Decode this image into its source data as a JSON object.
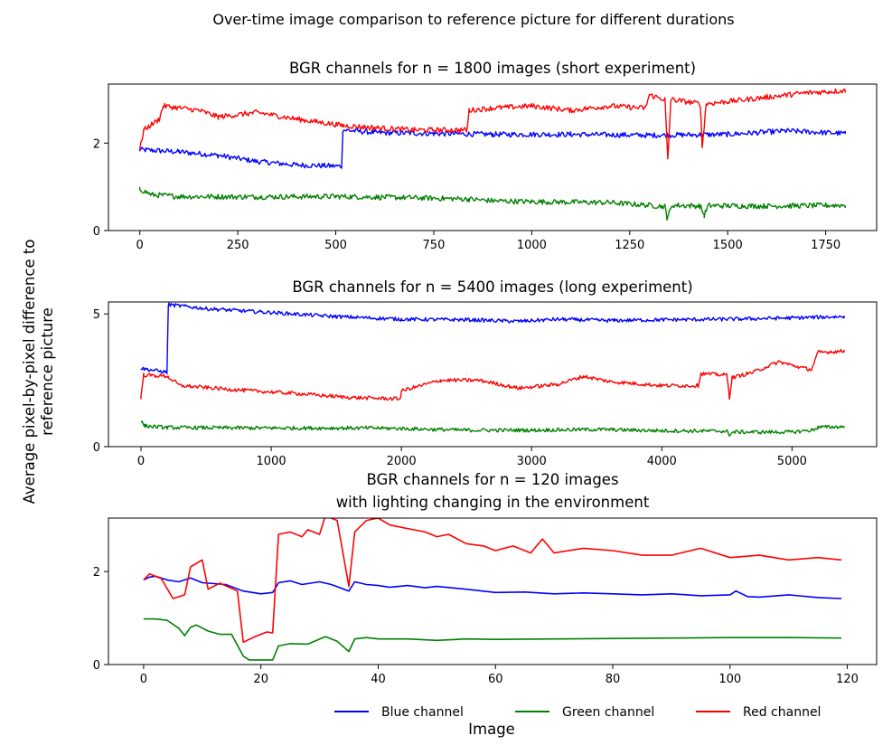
{
  "suptitle": "Over-time image comparison to reference picture for different durations",
  "ylabel": "Average pixel-by-pixel difference to reference picture",
  "ylabel_lines": [
    "Average pixel-by-pixel difference to",
    "reference picture"
  ],
  "xlabel": "Image",
  "legend": {
    "placement": "lower-right",
    "entries": [
      {
        "label": "Blue channel",
        "color": "#0000ff"
      },
      {
        "label": "Green channel",
        "color": "#008000"
      },
      {
        "label": "Red channel",
        "color": "#ff0000"
      }
    ]
  },
  "colors": {
    "blue": "#0000ff",
    "green": "#008000",
    "red": "#ff0000"
  },
  "chart_data": [
    {
      "type": "line",
      "title": "BGR channels for n = 1800 images (short experiment)",
      "title_lines": [
        "BGR channels for n = 1800 images (short experiment)"
      ],
      "xlim": [
        -80,
        1880
      ],
      "ylim": [
        0,
        3.35
      ],
      "xticks": [
        0,
        250,
        500,
        750,
        1000,
        1250,
        1500,
        1750
      ],
      "yticks": [
        0,
        2
      ],
      "noise": 0.12,
      "series": [
        {
          "name": "Blue channel",
          "color": "#0000ff",
          "points": [
            [
              0,
              1.85
            ],
            [
              100,
              1.8
            ],
            [
              200,
              1.72
            ],
            [
              300,
              1.58
            ],
            [
              400,
              1.5
            ],
            [
              515,
              1.47
            ],
            [
              518,
              2.3
            ],
            [
              600,
              2.24
            ],
            [
              750,
              2.22
            ],
            [
              900,
              2.2
            ],
            [
              1100,
              2.2
            ],
            [
              1300,
              2.18
            ],
            [
              1500,
              2.2
            ],
            [
              1650,
              2.28
            ],
            [
              1800,
              2.22
            ]
          ]
        },
        {
          "name": "Green channel",
          "color": "#008000",
          "points": [
            [
              0,
              0.95
            ],
            [
              30,
              0.82
            ],
            [
              100,
              0.78
            ],
            [
              300,
              0.77
            ],
            [
              500,
              0.78
            ],
            [
              700,
              0.75
            ],
            [
              840,
              0.72
            ],
            [
              900,
              0.68
            ],
            [
              1000,
              0.66
            ],
            [
              1200,
              0.64
            ],
            [
              1340,
              0.55
            ],
            [
              1345,
              0.3
            ],
            [
              1360,
              0.58
            ],
            [
              1430,
              0.56
            ],
            [
              1440,
              0.35
            ],
            [
              1450,
              0.57
            ],
            [
              1600,
              0.56
            ],
            [
              1800,
              0.58
            ]
          ]
        },
        {
          "name": "Red channel",
          "color": "#ff0000",
          "points": [
            [
              0,
              1.85
            ],
            [
              10,
              2.3
            ],
            [
              50,
              2.55
            ],
            [
              60,
              2.85
            ],
            [
              150,
              2.75
            ],
            [
              200,
              2.6
            ],
            [
              300,
              2.7
            ],
            [
              400,
              2.55
            ],
            [
              520,
              2.4
            ],
            [
              600,
              2.35
            ],
            [
              700,
              2.3
            ],
            [
              835,
              2.3
            ],
            [
              840,
              2.75
            ],
            [
              900,
              2.8
            ],
            [
              1000,
              2.85
            ],
            [
              1100,
              2.75
            ],
            [
              1200,
              2.85
            ],
            [
              1290,
              2.8
            ],
            [
              1300,
              3.1
            ],
            [
              1340,
              3.0
            ],
            [
              1347,
              1.6
            ],
            [
              1355,
              3.0
            ],
            [
              1430,
              2.9
            ],
            [
              1435,
              1.9
            ],
            [
              1445,
              2.9
            ],
            [
              1500,
              2.95
            ],
            [
              1600,
              3.05
            ],
            [
              1700,
              3.15
            ],
            [
              1800,
              3.2
            ]
          ]
        }
      ]
    },
    {
      "type": "line",
      "title": "BGR channels for n = 5400 images (long experiment)",
      "title_lines": [
        "BGR channels for n = 5400 images (long experiment)"
      ],
      "xlim": [
        -250,
        5650
      ],
      "ylim": [
        0,
        5.45
      ],
      "xticks": [
        0,
        1000,
        2000,
        3000,
        4000,
        5000
      ],
      "yticks": [
        0,
        5
      ],
      "noise": 0.14,
      "series": [
        {
          "name": "Blue channel",
          "color": "#0000ff",
          "points": [
            [
              0,
              2.95
            ],
            [
              200,
              2.8
            ],
            [
              210,
              5.35
            ],
            [
              500,
              5.2
            ],
            [
              1000,
              5.05
            ],
            [
              1500,
              4.9
            ],
            [
              2000,
              4.8
            ],
            [
              2500,
              4.78
            ],
            [
              2900,
              4.72
            ],
            [
              3200,
              4.8
            ],
            [
              3600,
              4.75
            ],
            [
              4000,
              4.78
            ],
            [
              4500,
              4.8
            ],
            [
              5000,
              4.85
            ],
            [
              5400,
              4.9
            ]
          ]
        },
        {
          "name": "Green channel",
          "color": "#008000",
          "points": [
            [
              0,
              0.95
            ],
            [
              30,
              0.78
            ],
            [
              200,
              0.72
            ],
            [
              1000,
              0.7
            ],
            [
              1800,
              0.7
            ],
            [
              2000,
              0.68
            ],
            [
              2500,
              0.62
            ],
            [
              3000,
              0.62
            ],
            [
              3500,
              0.65
            ],
            [
              4000,
              0.6
            ],
            [
              4500,
              0.58
            ],
            [
              4520,
              0.45
            ],
            [
              4550,
              0.55
            ],
            [
              5000,
              0.55
            ],
            [
              5150,
              0.62
            ],
            [
              5200,
              0.73
            ],
            [
              5400,
              0.75
            ]
          ]
        },
        {
          "name": "Red channel",
          "color": "#ff0000",
          "points": [
            [
              0,
              1.85
            ],
            [
              20,
              2.7
            ],
            [
              200,
              2.65
            ],
            [
              300,
              2.3
            ],
            [
              700,
              2.15
            ],
            [
              1200,
              2.0
            ],
            [
              1600,
              1.85
            ],
            [
              1990,
              1.8
            ],
            [
              2000,
              2.1
            ],
            [
              2300,
              2.5
            ],
            [
              2600,
              2.5
            ],
            [
              2900,
              2.2
            ],
            [
              3200,
              2.35
            ],
            [
              3400,
              2.65
            ],
            [
              3600,
              2.45
            ],
            [
              4000,
              2.3
            ],
            [
              4280,
              2.3
            ],
            [
              4300,
              2.75
            ],
            [
              4500,
              2.7
            ],
            [
              4520,
              1.85
            ],
            [
              4540,
              2.6
            ],
            [
              4700,
              2.8
            ],
            [
              4900,
              3.2
            ],
            [
              5050,
              3.0
            ],
            [
              5150,
              2.9
            ],
            [
              5200,
              3.55
            ],
            [
              5400,
              3.6
            ]
          ]
        }
      ]
    },
    {
      "type": "line",
      "title": "BGR channels for n = 120 images\nwith lighting changing in the environment",
      "title_lines": [
        "BGR channels for n = 120 images",
        "with lighting changing in the environment"
      ],
      "xlim": [
        -6,
        125
      ],
      "ylim": [
        0,
        3.15
      ],
      "xticks": [
        0,
        20,
        40,
        60,
        80,
        100,
        120
      ],
      "yticks": [
        0,
        2
      ],
      "noise": 0,
      "series": [
        {
          "name": "Blue channel",
          "color": "#0000ff",
          "points": [
            [
              0,
              1.82
            ],
            [
              1,
              1.88
            ],
            [
              2,
              1.9
            ],
            [
              4,
              1.82
            ],
            [
              6,
              1.78
            ],
            [
              8,
              1.86
            ],
            [
              10,
              1.76
            ],
            [
              14,
              1.72
            ],
            [
              17,
              1.58
            ],
            [
              20,
              1.52
            ],
            [
              22,
              1.55
            ],
            [
              23,
              1.76
            ],
            [
              25,
              1.8
            ],
            [
              27,
              1.72
            ],
            [
              30,
              1.78
            ],
            [
              32,
              1.72
            ],
            [
              35,
              1.58
            ],
            [
              36,
              1.78
            ],
            [
              38,
              1.72
            ],
            [
              40,
              1.7
            ],
            [
              42,
              1.66
            ],
            [
              45,
              1.7
            ],
            [
              48,
              1.65
            ],
            [
              50,
              1.68
            ],
            [
              55,
              1.62
            ],
            [
              60,
              1.55
            ],
            [
              65,
              1.56
            ],
            [
              70,
              1.52
            ],
            [
              75,
              1.54
            ],
            [
              80,
              1.52
            ],
            [
              85,
              1.5
            ],
            [
              90,
              1.52
            ],
            [
              95,
              1.48
            ],
            [
              100,
              1.5
            ],
            [
              101,
              1.58
            ],
            [
              103,
              1.46
            ],
            [
              105,
              1.45
            ],
            [
              110,
              1.5
            ],
            [
              115,
              1.44
            ],
            [
              119,
              1.42
            ]
          ]
        },
        {
          "name": "Green channel",
          "color": "#008000",
          "points": [
            [
              0,
              0.98
            ],
            [
              2,
              0.98
            ],
            [
              4,
              0.95
            ],
            [
              6,
              0.78
            ],
            [
              7,
              0.62
            ],
            [
              8,
              0.8
            ],
            [
              9,
              0.85
            ],
            [
              11,
              0.72
            ],
            [
              13,
              0.65
            ],
            [
              15,
              0.65
            ],
            [
              17,
              0.18
            ],
            [
              18,
              0.1
            ],
            [
              20,
              0.1
            ],
            [
              22,
              0.1
            ],
            [
              23,
              0.4
            ],
            [
              25,
              0.45
            ],
            [
              28,
              0.44
            ],
            [
              31,
              0.6
            ],
            [
              33,
              0.5
            ],
            [
              35,
              0.28
            ],
            [
              36,
              0.55
            ],
            [
              38,
              0.58
            ],
            [
              40,
              0.55
            ],
            [
              45,
              0.55
            ],
            [
              50,
              0.52
            ],
            [
              55,
              0.55
            ],
            [
              60,
              0.54
            ],
            [
              70,
              0.55
            ],
            [
              80,
              0.56
            ],
            [
              90,
              0.57
            ],
            [
              100,
              0.58
            ],
            [
              110,
              0.58
            ],
            [
              119,
              0.57
            ]
          ]
        },
        {
          "name": "Red channel",
          "color": "#ff0000",
          "points": [
            [
              0,
              1.82
            ],
            [
              1,
              1.95
            ],
            [
              3,
              1.85
            ],
            [
              5,
              1.42
            ],
            [
              7,
              1.5
            ],
            [
              8,
              2.1
            ],
            [
              10,
              2.25
            ],
            [
              11,
              1.62
            ],
            [
              13,
              1.75
            ],
            [
              16,
              1.58
            ],
            [
              17,
              0.48
            ],
            [
              19,
              0.6
            ],
            [
              21,
              0.7
            ],
            [
              22,
              0.68
            ],
            [
              23,
              2.8
            ],
            [
              25,
              2.85
            ],
            [
              27,
              2.75
            ],
            [
              28,
              2.9
            ],
            [
              30,
              2.8
            ],
            [
              31,
              3.2
            ],
            [
              33,
              3.1
            ],
            [
              35,
              1.68
            ],
            [
              36,
              2.85
            ],
            [
              38,
              3.1
            ],
            [
              40,
              3.15
            ],
            [
              42,
              3.0
            ],
            [
              44,
              2.95
            ],
            [
              46,
              2.9
            ],
            [
              48,
              2.85
            ],
            [
              50,
              2.75
            ],
            [
              52,
              2.8
            ],
            [
              55,
              2.6
            ],
            [
              58,
              2.55
            ],
            [
              60,
              2.45
            ],
            [
              63,
              2.55
            ],
            [
              66,
              2.4
            ],
            [
              68,
              2.7
            ],
            [
              70,
              2.4
            ],
            [
              75,
              2.5
            ],
            [
              80,
              2.45
            ],
            [
              85,
              2.35
            ],
            [
              90,
              2.35
            ],
            [
              95,
              2.5
            ],
            [
              100,
              2.3
            ],
            [
              105,
              2.35
            ],
            [
              110,
              2.25
            ],
            [
              115,
              2.3
            ],
            [
              119,
              2.25
            ]
          ]
        }
      ]
    }
  ]
}
